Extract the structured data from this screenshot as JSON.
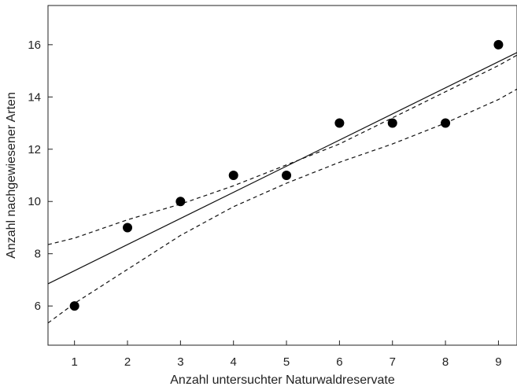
{
  "chart_data": {
    "type": "scatter",
    "title": "",
    "xlabel": "Anzahl untersuchter Naturwaldreservate",
    "ylabel": "Anzahl nachgewiesener Arten",
    "xlim": [
      0.5,
      9.35
    ],
    "ylim": [
      4.5,
      17.5
    ],
    "xticks": [
      "1",
      "2",
      "3",
      "4",
      "5",
      "6",
      "7",
      "8",
      "9"
    ],
    "yticks": [
      "6",
      "8",
      "10",
      "12",
      "14",
      "16"
    ],
    "grid": false,
    "legend": "none",
    "points": [
      {
        "x": 1,
        "y": 6
      },
      {
        "x": 2,
        "y": 9
      },
      {
        "x": 3,
        "y": 10
      },
      {
        "x": 4,
        "y": 11
      },
      {
        "x": 5,
        "y": 11
      },
      {
        "x": 6,
        "y": 13
      },
      {
        "x": 7,
        "y": 13
      },
      {
        "x": 8,
        "y": 13
      },
      {
        "x": 9,
        "y": 16
      }
    ],
    "regression_line": {
      "style": "solid",
      "x": [
        0.5,
        9.35
      ],
      "y": [
        6.85,
        15.7
      ]
    },
    "confidence_bands": [
      {
        "style": "dashed",
        "x": [
          0.5,
          1,
          2,
          3,
          4,
          5,
          6,
          7,
          8,
          9,
          9.35
        ],
        "y": [
          8.35,
          8.6,
          9.3,
          9.9,
          10.6,
          11.4,
          12.2,
          13.2,
          14.2,
          15.2,
          15.6
        ]
      },
      {
        "style": "dashed",
        "x": [
          0.5,
          1,
          2,
          3,
          4,
          5,
          6,
          7,
          8,
          9,
          9.35
        ],
        "y": [
          5.35,
          6.1,
          7.4,
          8.7,
          9.8,
          10.7,
          11.5,
          12.2,
          13.0,
          13.9,
          14.3
        ]
      }
    ],
    "colors": {
      "points": "#000000",
      "lines": "#111111",
      "axes": "#222222"
    }
  }
}
